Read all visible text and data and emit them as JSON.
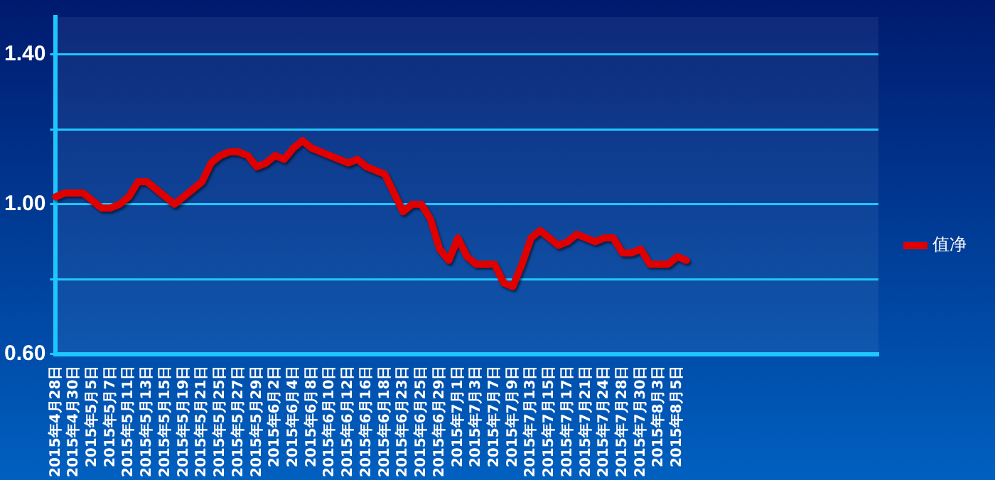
{
  "chart_data": {
    "type": "line",
    "categories": [
      "2015年4月28日",
      null,
      "2015年4月30日",
      null,
      "2015年5月5日",
      null,
      "2015年5月7日",
      null,
      "2015年5月11日",
      null,
      "2015年5月13日",
      null,
      "2015年5月15日",
      null,
      "2015年5月19日",
      null,
      "2015年5月21日",
      null,
      "2015年5月25日",
      null,
      "2015年5月27日",
      null,
      "2015年5月29日",
      null,
      "2015年6月2日",
      null,
      "2015年6月4日",
      null,
      "2015年6月8日",
      null,
      "2015年6月10日",
      null,
      "2015年6月12日",
      null,
      "2015年6月16日",
      null,
      "2015年6月18日",
      null,
      "2015年6月23日",
      null,
      "2015年6月25日",
      null,
      "2015年6月29日",
      null,
      "2015年7月1日",
      null,
      "2015年7月3日",
      null,
      "2015年7月7日",
      null,
      "2015年7月9日",
      null,
      "2015年7月13日",
      null,
      "2015年7月15日",
      null,
      "2015年7月17日",
      null,
      "2015年7月21日",
      null,
      "2015年7月24日",
      null,
      "2015年7月28日",
      null,
      "2015年7月30日",
      null,
      "2015年8月3日",
      null,
      "2015年8月5日",
      null,
      null,
      null,
      null,
      null,
      null,
      null,
      null,
      null,
      null,
      null,
      null,
      null,
      null,
      null,
      null,
      null,
      null,
      null,
      null,
      null,
      null
    ],
    "series": [
      {
        "name": "值净",
        "color": "#e00000",
        "values": [
          1.02,
          1.03,
          1.03,
          1.03,
          1.01,
          0.99,
          0.99,
          1.0,
          1.02,
          1.06,
          1.06,
          1.04,
          1.02,
          1.0,
          1.02,
          1.04,
          1.06,
          1.11,
          1.13,
          1.14,
          1.14,
          1.13,
          1.1,
          1.11,
          1.13,
          1.12,
          1.15,
          1.17,
          1.15,
          1.14,
          1.13,
          1.12,
          1.11,
          1.12,
          1.1,
          1.09,
          1.08,
          1.03,
          0.98,
          1.0,
          1.0,
          0.96,
          0.88,
          0.85,
          0.91,
          0.86,
          0.84,
          0.84,
          0.84,
          0.79,
          0.78,
          0.84,
          0.91,
          0.93,
          0.91,
          0.89,
          0.9,
          0.92,
          0.91,
          0.9,
          0.91,
          0.91,
          0.87,
          0.87,
          0.88,
          0.84,
          0.84,
          0.84,
          0.86,
          0.85,
          null,
          null,
          null,
          null,
          null,
          null,
          null,
          null,
          null,
          null,
          null,
          null,
          null,
          null,
          null,
          null,
          null,
          null,
          null,
          null,
          null
        ]
      }
    ],
    "ylim": [
      0.6,
      1.5
    ],
    "yticks": [
      {
        "value": 0.6,
        "label": "0.60"
      },
      {
        "value": 0.8,
        "label": null
      },
      {
        "value": 1.0,
        "label": "1.00"
      },
      {
        "value": 1.2,
        "label": null
      },
      {
        "value": 1.4,
        "label": "1.40"
      }
    ],
    "grid": "y",
    "legend": "right",
    "marker": "none",
    "line_style": "solid"
  }
}
